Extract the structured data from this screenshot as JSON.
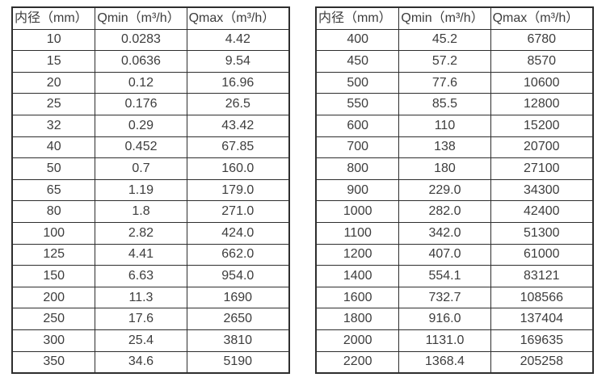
{
  "colors": {
    "background": "#ffffff",
    "border": "#2e2e2e",
    "text": "#3d3d3d"
  },
  "tables": [
    {
      "name": "small-diameter-flow-table",
      "headers": [
        "内径（mm）",
        "Qmin（m³/h）",
        "Qmax（m³/h）"
      ],
      "rows": [
        [
          "10",
          "0.0283",
          "4.42"
        ],
        [
          "15",
          "0.0636",
          "9.54"
        ],
        [
          "20",
          "0.12",
          "16.96"
        ],
        [
          "25",
          "0.176",
          "26.5"
        ],
        [
          "32",
          "0.29",
          "43.42"
        ],
        [
          "40",
          "0.452",
          "67.85"
        ],
        [
          "50",
          "0.7",
          "160.0"
        ],
        [
          "65",
          "1.19",
          "179.0"
        ],
        [
          "80",
          "1.8",
          "271.0"
        ],
        [
          "100",
          "2.82",
          "424.0"
        ],
        [
          "125",
          "4.41",
          "662.0"
        ],
        [
          "150",
          "6.63",
          "954.0"
        ],
        [
          "200",
          "11.3",
          "1690"
        ],
        [
          "250",
          "17.6",
          "2650"
        ],
        [
          "300",
          "25.4",
          "3810"
        ],
        [
          "350",
          "34.6",
          "5190"
        ]
      ]
    },
    {
      "name": "large-diameter-flow-table",
      "headers": [
        "内径（mm）",
        "Qmin（m³/h）",
        "Qmax（m³/h）"
      ],
      "rows": [
        [
          "400",
          "45.2",
          "6780"
        ],
        [
          "450",
          "57.2",
          "8570"
        ],
        [
          "500",
          "77.6",
          "10600"
        ],
        [
          "550",
          "85.5",
          "12800"
        ],
        [
          "600",
          "110",
          "15200"
        ],
        [
          "700",
          "138",
          "20700"
        ],
        [
          "800",
          "180",
          "27100"
        ],
        [
          "900",
          "229.0",
          "34300"
        ],
        [
          "1000",
          "282.0",
          "42400"
        ],
        [
          "1100",
          "342.0",
          "51300"
        ],
        [
          "1200",
          "407.0",
          "61000"
        ],
        [
          "1400",
          "554.1",
          "83121"
        ],
        [
          "1600",
          "732.7",
          "108566"
        ],
        [
          "1800",
          "916.0",
          "137404"
        ],
        [
          "2000",
          "1131.0",
          "169635"
        ],
        [
          "2200",
          "1368.4",
          "205258"
        ]
      ]
    }
  ]
}
